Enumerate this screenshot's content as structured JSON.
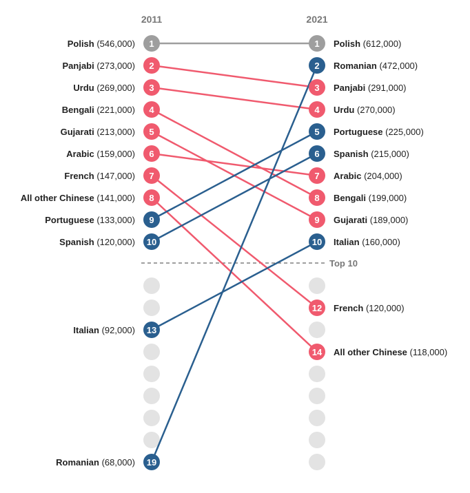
{
  "chart_data": {
    "type": "slope",
    "title": "",
    "columns": [
      "2011",
      "2021"
    ],
    "max_rank": 19,
    "top_n_label": "Top 10",
    "colors": {
      "up": "#2a5f8f",
      "down": "#f05a6e",
      "same": "#9e9e9e",
      "empty": "#e3e3e3",
      "divider": "#666666"
    },
    "series": [
      {
        "name": "Polish",
        "rank_2011": 1,
        "value_2011": "546,000",
        "rank_2021": 1,
        "value_2021": "612,000",
        "trend": "same"
      },
      {
        "name": "Panjabi",
        "rank_2011": 2,
        "value_2011": "273,000",
        "rank_2021": 3,
        "value_2021": "291,000",
        "trend": "down"
      },
      {
        "name": "Urdu",
        "rank_2011": 3,
        "value_2011": "269,000",
        "rank_2021": 4,
        "value_2021": "270,000",
        "trend": "down"
      },
      {
        "name": "Bengali",
        "rank_2011": 4,
        "value_2011": "221,000",
        "rank_2021": 8,
        "value_2021": "199,000",
        "trend": "down"
      },
      {
        "name": "Gujarati",
        "rank_2011": 5,
        "value_2011": "213,000",
        "rank_2021": 9,
        "value_2021": "189,000",
        "trend": "down"
      },
      {
        "name": "Arabic",
        "rank_2011": 6,
        "value_2011": "159,000",
        "rank_2021": 7,
        "value_2021": "204,000",
        "trend": "down"
      },
      {
        "name": "French",
        "rank_2011": 7,
        "value_2011": "147,000",
        "rank_2021": 12,
        "value_2021": "120,000",
        "trend": "down"
      },
      {
        "name": "All other Chinese",
        "rank_2011": 8,
        "value_2011": "141,000",
        "rank_2021": 14,
        "value_2021": "118,000",
        "trend": "down"
      },
      {
        "name": "Portuguese",
        "rank_2011": 9,
        "value_2011": "133,000",
        "rank_2021": 5,
        "value_2021": "225,000",
        "trend": "up"
      },
      {
        "name": "Spanish",
        "rank_2011": 10,
        "value_2011": "120,000",
        "rank_2021": 6,
        "value_2021": "215,000",
        "trend": "up"
      },
      {
        "name": "Italian",
        "rank_2011": 13,
        "value_2011": "92,000",
        "rank_2021": 10,
        "value_2021": "160,000",
        "trend": "up"
      },
      {
        "name": "Romanian",
        "rank_2011": 19,
        "value_2011": "68,000",
        "rank_2021": 2,
        "value_2021": "472,000",
        "trend": "up"
      }
    ]
  }
}
